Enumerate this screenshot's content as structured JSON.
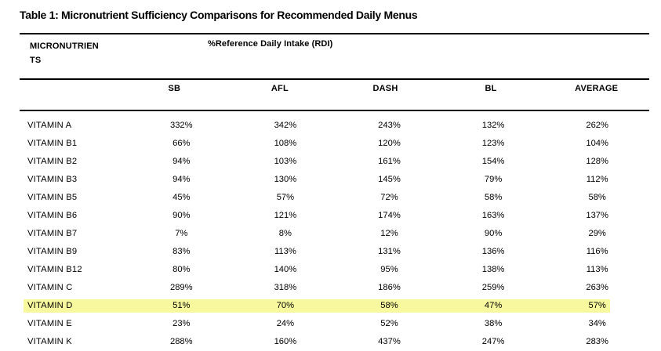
{
  "title": "Table 1: Micronutrient Sufficiency Comparisons for Recommended Daily Menus",
  "table_header": {
    "micronutrients_line1": "MICRONUTRIEN",
    "micronutrients_line2": "TS",
    "rdi_label": "%Reference Daily Intake (RDI)"
  },
  "columns": [
    "SB",
    "AFL",
    "DASH",
    "BL",
    "AVERAGE"
  ],
  "rows": [
    {
      "name": "VITAMIN A",
      "values": [
        "332%",
        "342%",
        "243%",
        "132%",
        "262%"
      ],
      "highlighted": false
    },
    {
      "name": "VITAMIN B1",
      "values": [
        "66%",
        "108%",
        "120%",
        "123%",
        "104%"
      ],
      "highlighted": false
    },
    {
      "name": "VITAMIN B2",
      "values": [
        "94%",
        "103%",
        "161%",
        "154%",
        "128%"
      ],
      "highlighted": false
    },
    {
      "name": "VITAMIN B3",
      "values": [
        "94%",
        "130%",
        "145%",
        "79%",
        "112%"
      ],
      "highlighted": false
    },
    {
      "name": "VITAMIN B5",
      "values": [
        "45%",
        "57%",
        "72%",
        "58%",
        "58%"
      ],
      "highlighted": false
    },
    {
      "name": "VITAMIN B6",
      "values": [
        "90%",
        "121%",
        "174%",
        "163%",
        "137%"
      ],
      "highlighted": false
    },
    {
      "name": "VITAMIN B7",
      "values": [
        "7%",
        "8%",
        "12%",
        "90%",
        "29%"
      ],
      "highlighted": false
    },
    {
      "name": "VITAMIN B9",
      "values": [
        "83%",
        "113%",
        "131%",
        "136%",
        "116%"
      ],
      "highlighted": false
    },
    {
      "name": "VITAMIN B12",
      "values": [
        "80%",
        "140%",
        "95%",
        "138%",
        "113%"
      ],
      "highlighted": false
    },
    {
      "name": "VITAMIN C",
      "values": [
        "289%",
        "318%",
        "186%",
        "259%",
        "263%"
      ],
      "highlighted": false
    },
    {
      "name": "VITAMIN D",
      "values": [
        "51%",
        "70%",
        "58%",
        "47%",
        "57%"
      ],
      "highlighted": true
    },
    {
      "name": "VITAMIN E",
      "values": [
        "23%",
        "24%",
        "52%",
        "38%",
        "34%"
      ],
      "highlighted": false
    },
    {
      "name": "VITAMIN K",
      "values": [
        "288%",
        "160%",
        "437%",
        "247%",
        "283%"
      ],
      "highlighted": false
    }
  ],
  "colors": {
    "background": "#FFFFFF",
    "text": "#000000",
    "rule": "#000000",
    "highlight": "#F8F89E"
  }
}
